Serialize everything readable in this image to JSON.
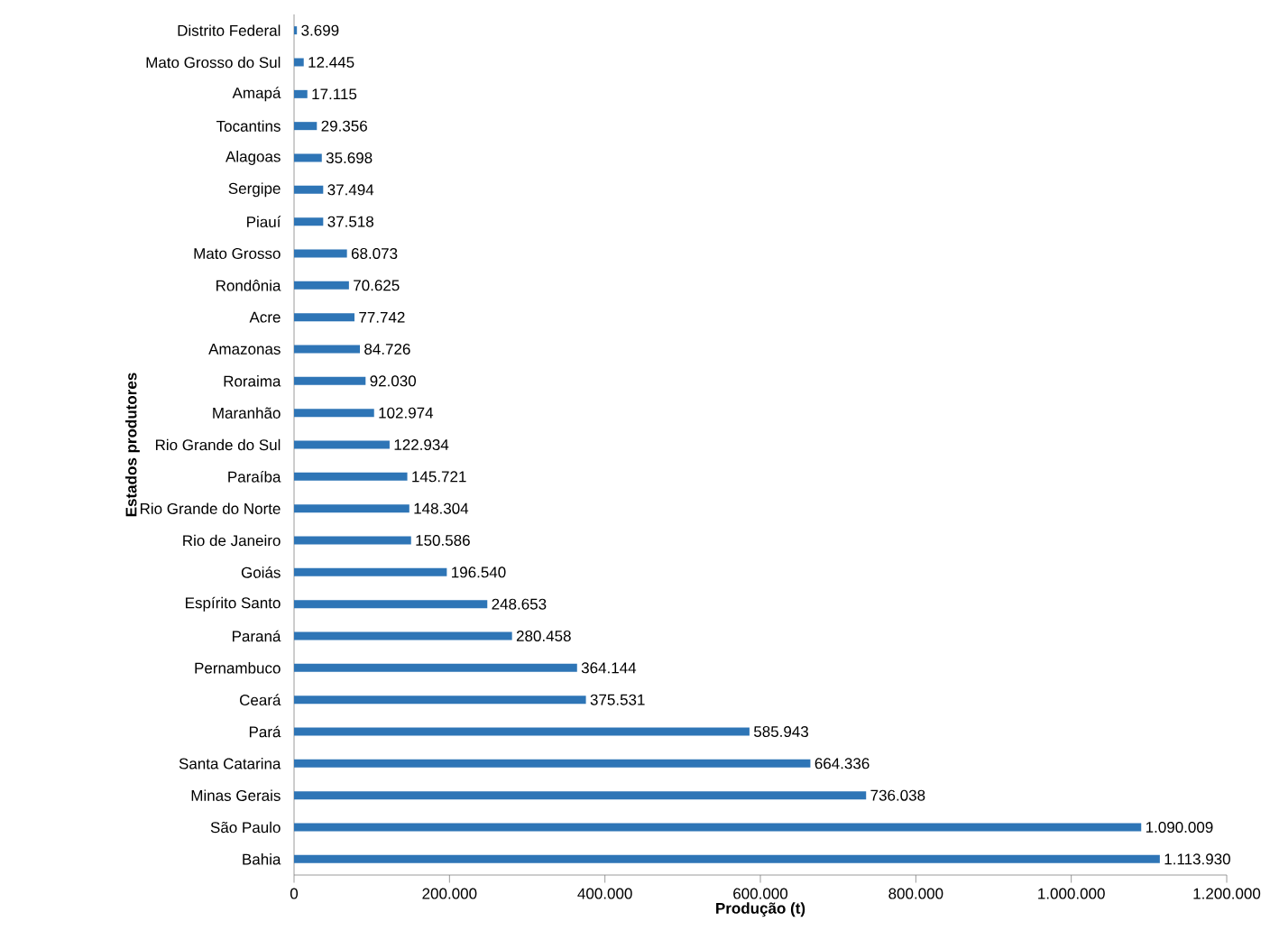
{
  "chart_data": {
    "type": "bar",
    "orientation": "horizontal",
    "xlabel": "Produção (t)",
    "ylabel": "Estados produtores",
    "categories": [
      "Distrito Federal",
      "Mato Grosso do Sul",
      "Amapá",
      "Tocantins",
      "Alagoas",
      "Sergipe",
      "Piauí",
      "Mato Grosso",
      "Rondônia",
      "Acre",
      "Amazonas",
      "Roraima",
      "Maranhão",
      "Rio Grande do Sul",
      "Paraíba",
      "Rio Grande do Norte",
      "Rio de Janeiro",
      "Goiás",
      "Espírito Santo",
      "Paraná",
      "Pernambuco",
      "Ceará",
      "Pará",
      "Santa Catarina",
      "Minas Gerais",
      "São Paulo",
      "Bahia"
    ],
    "values": [
      3699,
      12445,
      17115,
      29356,
      35698,
      37494,
      37518,
      68073,
      70625,
      77742,
      84726,
      92030,
      102974,
      122934,
      145721,
      148304,
      150586,
      196540,
      248653,
      280458,
      364144,
      375531,
      585943,
      664336,
      736038,
      1090009,
      1113930
    ],
    "value_labels": [
      "3.699",
      "12.445",
      "17.115",
      "29.356",
      "35.698",
      "37.494",
      "37.518",
      "68.073",
      "70.625",
      "77.742",
      "84.726",
      "92.030",
      "102.974",
      "122.934",
      "145.721",
      "148.304",
      "150.586",
      "196.540",
      "248.653",
      "280.458",
      "364.144",
      "375.531",
      "585.943",
      "664.336",
      "736.038",
      "1.090.009",
      "1.113.930"
    ],
    "color": "#2e75b6",
    "xlim": [
      0,
      1200000
    ],
    "xticks": [
      0,
      {
        "value": 200000,
        "label": "200.000"
      },
      {
        "value": 400000,
        "label": "400.000"
      },
      {
        "value": 600000,
        "label": "600.000"
      },
      {
        "value": 800000,
        "label": "800.000"
      },
      {
        "value": 1000000,
        "label": "1.000.000"
      },
      {
        "value": 1200000,
        "label": "1.200.000"
      }
    ]
  }
}
